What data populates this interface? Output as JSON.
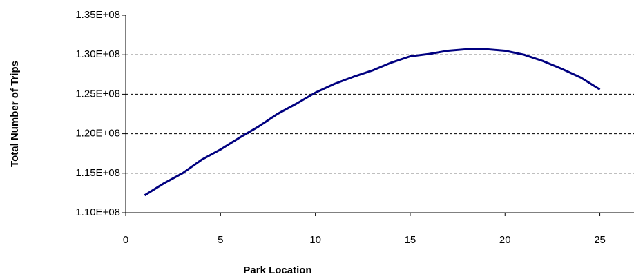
{
  "chart_data": {
    "type": "line",
    "x_label": "Park Location",
    "y_label": "Total Number of Trips",
    "x": [
      1,
      2,
      3,
      4,
      5,
      6,
      7,
      8,
      9,
      10,
      11,
      12,
      13,
      14,
      15,
      16,
      17,
      18,
      19,
      20,
      21,
      22,
      23,
      24,
      25
    ],
    "series": [
      {
        "color": "#000080",
        "values": [
          112200000,
          113700000,
          115000000,
          116700000,
          118000000,
          119500000,
          120900000,
          122500000,
          123800000,
          125200000,
          126300000,
          127200000,
          128000000,
          129000000,
          129800000,
          130100000,
          130500000,
          130700000,
          130700000,
          130500000,
          130000000,
          129200000,
          128200000,
          127100000,
          125600000
        ]
      }
    ],
    "xlim": [
      0,
      26.8
    ],
    "xticks": [
      0,
      5,
      10,
      15,
      20,
      25
    ],
    "ylim": [
      110000000,
      135000000
    ],
    "yticks": [
      {
        "value": 110000000,
        "label": "1.10E+08"
      },
      {
        "value": 115000000,
        "label": "1.15E+08"
      },
      {
        "value": 120000000,
        "label": "1.20E+08"
      },
      {
        "value": 125000000,
        "label": "1.25E+08"
      },
      {
        "value": 130000000,
        "label": "1.30E+08"
      },
      {
        "value": 135000000,
        "label": "1.35E+08"
      }
    ],
    "grid": true
  }
}
